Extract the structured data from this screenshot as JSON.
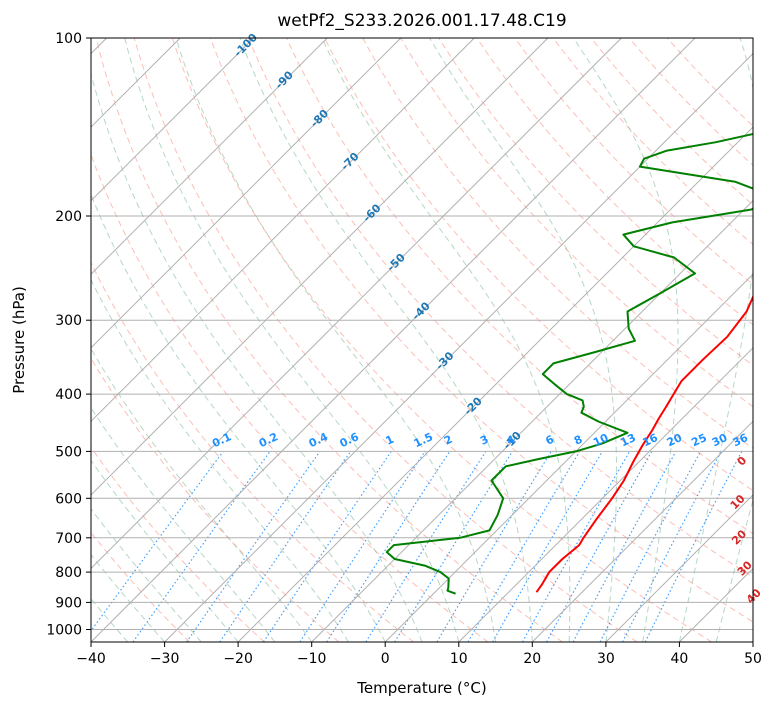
{
  "chart_data": {
    "type": "line",
    "subtype": "skew-t log-p diagram",
    "title": "wetPf2_S233.2026.001.17.48.C19",
    "xlabel": "Temperature (°C)",
    "ylabel": "Pressure (hPa)",
    "xlim": [
      -40,
      50
    ],
    "ylim": [
      1050,
      100
    ],
    "y_scale": "log",
    "grid": true,
    "x_ticks": [
      -40,
      -30,
      -20,
      -10,
      0,
      10,
      20,
      30,
      40,
      50
    ],
    "y_ticks": [
      100,
      200,
      300,
      400,
      500,
      600,
      700,
      800,
      900,
      1000
    ],
    "series": [
      {
        "role": "temperature",
        "color": "#ff0000",
        "p": [
          865,
          840,
          800,
          760,
          720,
          700,
          650,
          600,
          560,
          520,
          490,
          460,
          440,
          420,
          400,
          380,
          350,
          320,
          290,
          270,
          255,
          245,
          235,
          225,
          215,
          200,
          185,
          170,
          160,
          150,
          140,
          130,
          120,
          110,
          100
        ],
        "t": [
          13.8,
          13.5,
          12.8,
          12.8,
          13.2,
          12.8,
          12.0,
          11.3,
          10.5,
          9.2,
          8.3,
          7.5,
          6.8,
          6.2,
          5.5,
          4.8,
          4.8,
          5.0,
          4.2,
          2.8,
          2.2,
          3.5,
          5.8,
          7.5,
          8.5,
          9.0,
          10.0,
          11.5,
          13.2,
          13.5,
          13.8,
          14.5,
          16.0,
          17.8,
          20.0
        ]
      },
      {
        "role": "dewpoint",
        "color": "#008000",
        "p": [
          870,
          860,
          850,
          820,
          800,
          780,
          760,
          740,
          720,
          700,
          680,
          640,
          600,
          560,
          530,
          515,
          500,
          485,
          465,
          445,
          430,
          420,
          410,
          400,
          385,
          370,
          355,
          340,
          325,
          310,
          290,
          270,
          250,
          235,
          225,
          215,
          205,
          195,
          185,
          175,
          165,
          160,
          155,
          150,
          140,
          130,
          120,
          110,
          100
        ],
        "t": [
          3.0,
          1.5,
          1.2,
          0.0,
          -2.0,
          -5.0,
          -10.0,
          -12.0,
          -12.0,
          -4.0,
          -1.0,
          -2.0,
          -3.5,
          -7.5,
          -7.5,
          -4.0,
          0.0,
          2.5,
          4.5,
          -1.0,
          -4.5,
          -5.0,
          -6.0,
          -9.0,
          -12.0,
          -15.0,
          -15.0,
          -11.0,
          -7.0,
          -9.5,
          -12.0,
          -10.0,
          -8.0,
          -13.0,
          -20.0,
          -23.0,
          -18.0,
          -9.0,
          -8.0,
          -15.0,
          -30.0,
          -30.5,
          -28.5,
          -23.0,
          -14.5,
          -11.0,
          -9.5,
          -6.5,
          -3.0
        ]
      }
    ],
    "isotherm_labels": [
      "-100",
      "-90",
      "-80",
      "-70",
      "-60",
      "-50",
      "-40",
      "-30",
      "-20",
      "-10"
    ],
    "mixing_ratio_labels": [
      "0.1",
      "0.2",
      "0.4",
      "0.6",
      "1",
      "1.5",
      "2",
      "3",
      "4",
      "6",
      "8",
      "10",
      "13",
      "16",
      "20",
      "25",
      "30",
      "36"
    ],
    "dry_adiabat_labels": [
      "0",
      "10",
      "20",
      "30",
      "40"
    ]
  },
  "colors": {
    "temperature": "#ff0000",
    "dewpoint": "#008000",
    "isotherm_label": "#1f77b4",
    "mixing_ratio": "#1e90ff",
    "dry_adiabat": "#fa8072",
    "moist_adiabat": "#2e8b57",
    "grid": "#b0b0b0"
  }
}
